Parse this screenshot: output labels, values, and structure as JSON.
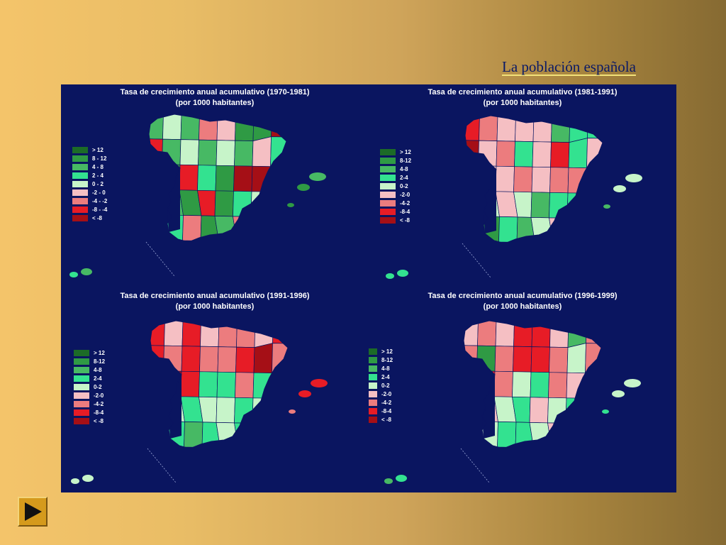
{
  "slide": {
    "title": "La población española"
  },
  "colors": {
    "ocean": "#0a1560",
    "classes": [
      "#1c6b27",
      "#2f9a44",
      "#47b964",
      "#33e290",
      "#c7f4c9",
      "#f5bfc3",
      "#ec7c7e",
      "#e71c26",
      "#a50f16"
    ]
  },
  "maps": [
    {
      "title": "Tasa de crecimiento anual acumulativo (1970-1981)",
      "subtitle": "(por 1000 habitantes)",
      "legend": [
        "> 12",
        "8 - 12",
        "4 - 8",
        "2 - 4",
        "0 - 2",
        "-2 - 0",
        "-4 - -2",
        "-8 - -4",
        "< -8"
      ],
      "regions": [
        2,
        4,
        2,
        6,
        5,
        1,
        1,
        8,
        7,
        2,
        4,
        2,
        4,
        2,
        5,
        3,
        6,
        1,
        7,
        3,
        1,
        8,
        8,
        7,
        5,
        2,
        1,
        7,
        1,
        3,
        4,
        3,
        6,
        3,
        6,
        1,
        2,
        6,
        2,
        3
      ],
      "islands": [
        1,
        2,
        1,
        3,
        2
      ]
    },
    {
      "title": "Tasa de crecimiento anual acumulativo (1981-1991)",
      "subtitle": "(por 1000 habitantes)",
      "legend": [
        "> 12",
        "8-12",
        "4-8",
        "2-4",
        "0-2",
        "-2-0",
        "-4-2",
        "-8-4",
        "< -8"
      ],
      "regions": [
        7,
        6,
        5,
        5,
        5,
        2,
        3,
        3,
        8,
        5,
        6,
        3,
        5,
        7,
        3,
        5,
        6,
        5,
        5,
        6,
        5,
        6,
        6,
        4,
        3,
        4,
        5,
        4,
        2,
        3,
        3,
        3,
        6,
        1,
        3,
        2,
        4,
        5,
        2,
        4
      ],
      "islands": [
        4,
        4,
        2,
        3,
        3
      ]
    },
    {
      "title": "Tasa de crecimiento anual acumulativo (1991-1996)",
      "subtitle": "(por 1000 habitantes)",
      "legend": [
        "> 12",
        "8-12",
        "4-8",
        "2-4",
        "0-2",
        "-2-0",
        "-4-2",
        "-8-4",
        "< -8"
      ],
      "regions": [
        7,
        5,
        7,
        5,
        6,
        6,
        5,
        7,
        7,
        6,
        7,
        6,
        6,
        7,
        8,
        6,
        5,
        8,
        7,
        3,
        3,
        6,
        3,
        5,
        8,
        4,
        3,
        4,
        4,
        3,
        4,
        2,
        6,
        3,
        2,
        3,
        4,
        3,
        5,
        1
      ],
      "islands": [
        7,
        7,
        6,
        4,
        4
      ]
    },
    {
      "title": "Tasa de crecimiento anual acumulativo (1996-1999)",
      "subtitle": "(por 1000 habitantes)",
      "legend": [
        "> 12",
        "8-12",
        "4-8",
        "2-4",
        "0-2",
        "-2-0",
        "-4-2",
        "-8-4",
        "< -8"
      ],
      "regions": [
        5,
        6,
        5,
        7,
        7,
        5,
        2,
        6,
        6,
        1,
        6,
        7,
        7,
        6,
        4,
        6,
        6,
        7,
        6,
        4,
        3,
        6,
        5,
        5,
        6,
        5,
        4,
        3,
        5,
        4,
        3,
        4,
        5,
        4,
        3,
        3,
        4,
        5,
        3,
        2
      ],
      "islands": [
        4,
        4,
        3,
        2,
        3
      ]
    }
  ]
}
